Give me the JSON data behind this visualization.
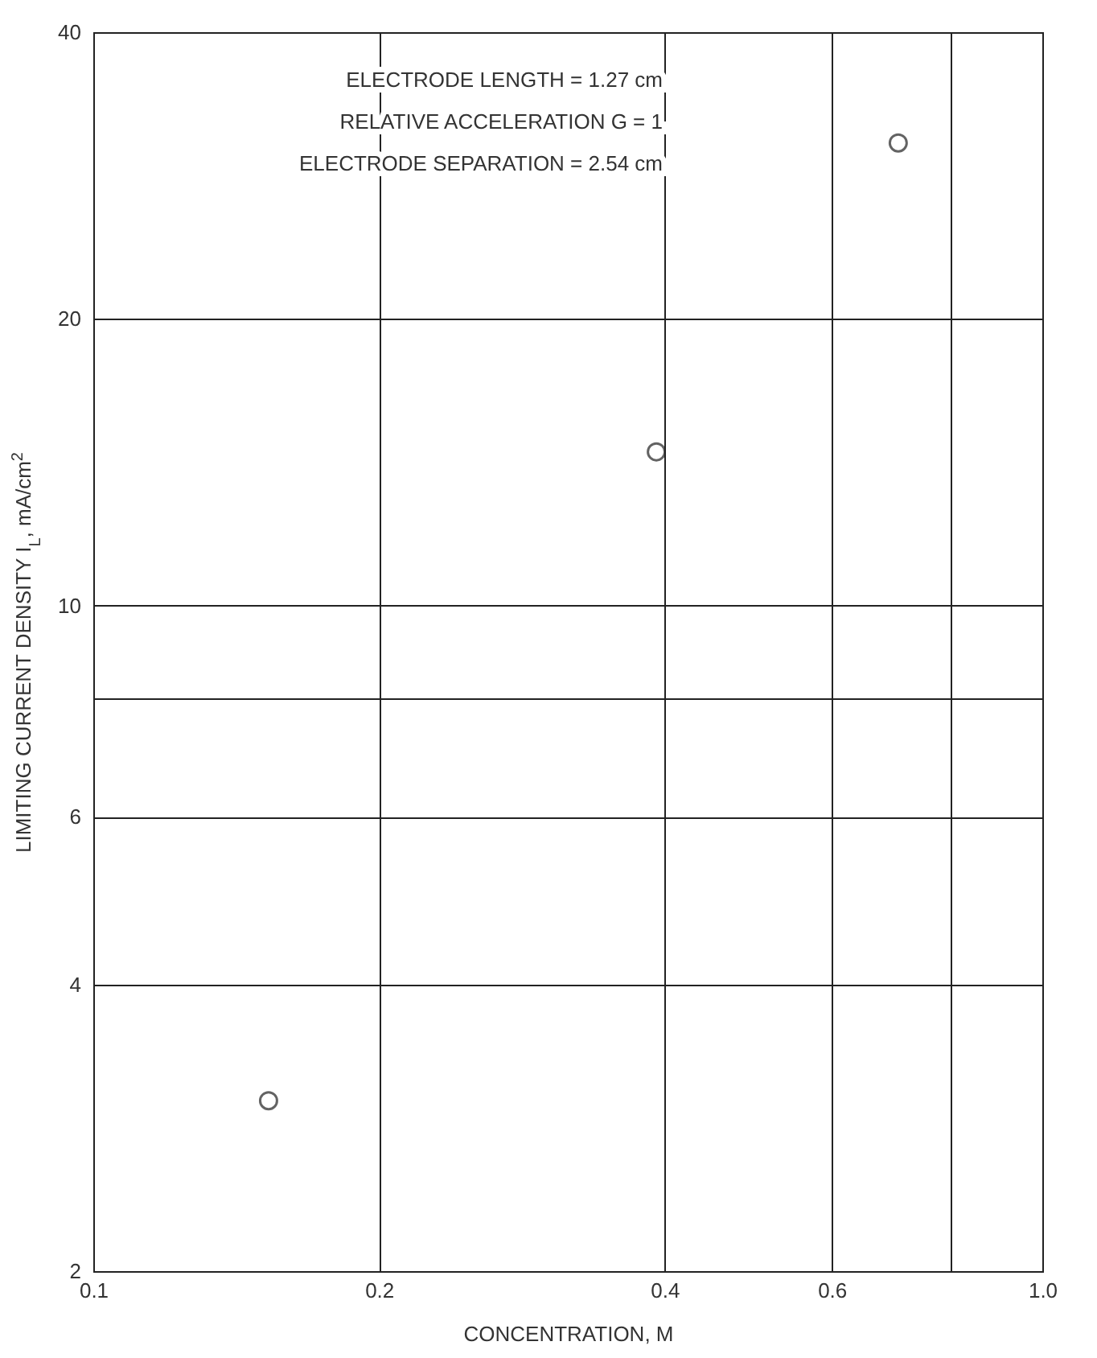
{
  "chart_data": {
    "type": "scatter",
    "xlabel": "CONCENTRATION, M",
    "ylabel": "LIMITING CURRENT DENSITY I$_{L}$, mA/cm$^{2}$",
    "x": [
      0.153,
      0.392,
      0.705
    ],
    "series": [
      {
        "color": "#222222",
        "values": [
          3.02,
          14.5,
          30.6
        ]
      }
    ],
    "log": "xy",
    "xlim": [
      0.1,
      1
    ],
    "ylim": [
      2,
      40
    ],
    "xticks": [
      0.1,
      0.2,
      0.4,
      0.6,
      {
        "value": 0.8,
        "label": null
      },
      {
        "value": 1,
        "label": "1.0"
      }
    ],
    "yticks": [
      2,
      4,
      6,
      {
        "value": 8,
        "label": null
      },
      10,
      20,
      40
    ],
    "grid": true,
    "marker": "circle",
    "annotations": [
      "ELECTRODE LENGTH = 1.27 cm",
      "RELATIVE ACCELERATION G = 1",
      "ELECTRODE SEPARATION = 2.54 cm"
    ]
  }
}
